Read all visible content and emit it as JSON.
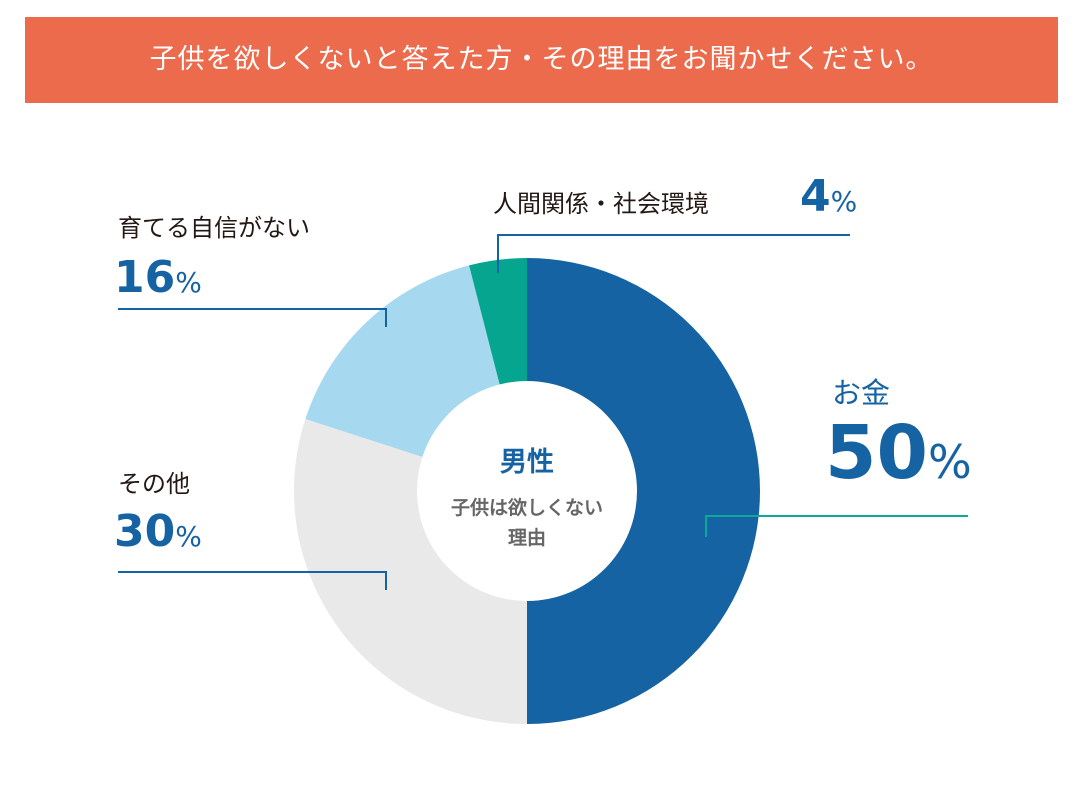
{
  "header": {
    "question": "子供を欲しくないと答えた方・その理由をお聞かせください。"
  },
  "center": {
    "title": "男性",
    "subtitle_line1": "子供は欲しくない",
    "subtitle_line2": "理由"
  },
  "colors": {
    "banner": "#ec6b4d",
    "money": "#1663a3",
    "other": "#e9e9e9",
    "confidence": "#a6d9ef",
    "relations": "#05a58f",
    "leader_blue": "#1663a3",
    "leader_teal": "#0aa99a"
  },
  "chart_data": {
    "type": "pie",
    "title": "",
    "slices": [
      {
        "label": "お金",
        "value": 50,
        "display": "50",
        "unit": "%"
      },
      {
        "label": "その他",
        "value": 30,
        "display": "30",
        "unit": "%"
      },
      {
        "label": "育てる自信がない",
        "value": 16,
        "display": "16",
        "unit": "%"
      },
      {
        "label": "人間関係・社会環境",
        "value": 4,
        "display": "4",
        "unit": "%"
      }
    ]
  }
}
